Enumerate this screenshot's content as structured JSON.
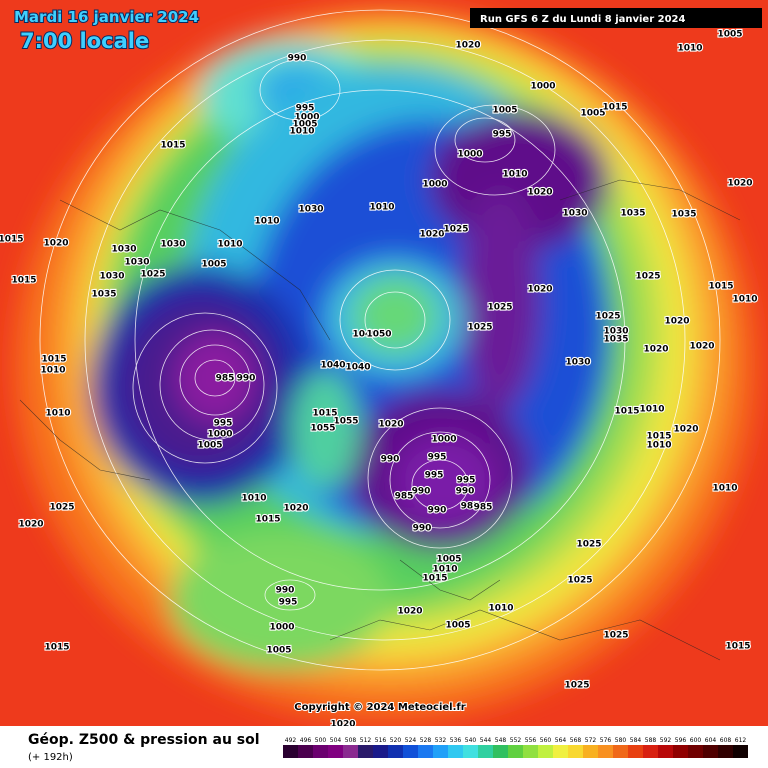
{
  "header": {
    "date": "Mardi 16 janvier 2024",
    "time": "7:00 locale",
    "run": "Run GFS 6 Z du Lundi 8 janvier 2024"
  },
  "copyright": "Copyright © 2024 Meteociel.fr",
  "footer": {
    "title": "Géop. Z500 & pression au sol",
    "subtitle": "(+ 192h)"
  },
  "scale": [
    492,
    496,
    500,
    504,
    508,
    512,
    516,
    520,
    524,
    528,
    532,
    536,
    540,
    544,
    548,
    552,
    556,
    560,
    564,
    568,
    572,
    576,
    580,
    584,
    588,
    592,
    596,
    600,
    604,
    608,
    612
  ],
  "isobar_labels": [
    "1020",
    "1010",
    "1005",
    "990",
    "1000",
    "995",
    "1000",
    "1005",
    "1010",
    "1005",
    "1005",
    "1015",
    "1015",
    "995",
    "1000",
    "1010",
    "1020",
    "1000",
    "1030",
    "1035",
    "1035",
    "1020",
    "1010",
    "1030",
    "1010",
    "1020",
    "1025",
    "1010",
    "1030",
    "1030",
    "1030",
    "1020",
    "1015",
    "1005",
    "1025",
    "1030",
    "1015",
    "1035",
    "1020",
    "1025",
    "1015",
    "1010",
    "1025",
    "1025",
    "1025",
    "1030",
    "1035",
    "1020",
    "1020",
    "1020",
    "1040",
    "1050",
    "1015",
    "1010",
    "985",
    "990",
    "1040",
    "1040",
    "1030",
    "1010",
    "995",
    "1000",
    "1005",
    "1015",
    "1055",
    "1055",
    "1020",
    "1015",
    "1010",
    "1000",
    "1015",
    "1010",
    "1020",
    "995",
    "990",
    "995",
    "995",
    "990",
    "990",
    "985",
    "985",
    "985",
    "990",
    "990",
    "1010",
    "1015",
    "1020",
    "1025",
    "1020",
    "1010",
    "1025",
    "1005",
    "1010",
    "1015",
    "1025",
    "1020",
    "1010",
    "1005",
    "990",
    "995",
    "1000",
    "1005",
    "1015",
    "1025",
    "1015",
    "1025",
    "1020"
  ]
}
